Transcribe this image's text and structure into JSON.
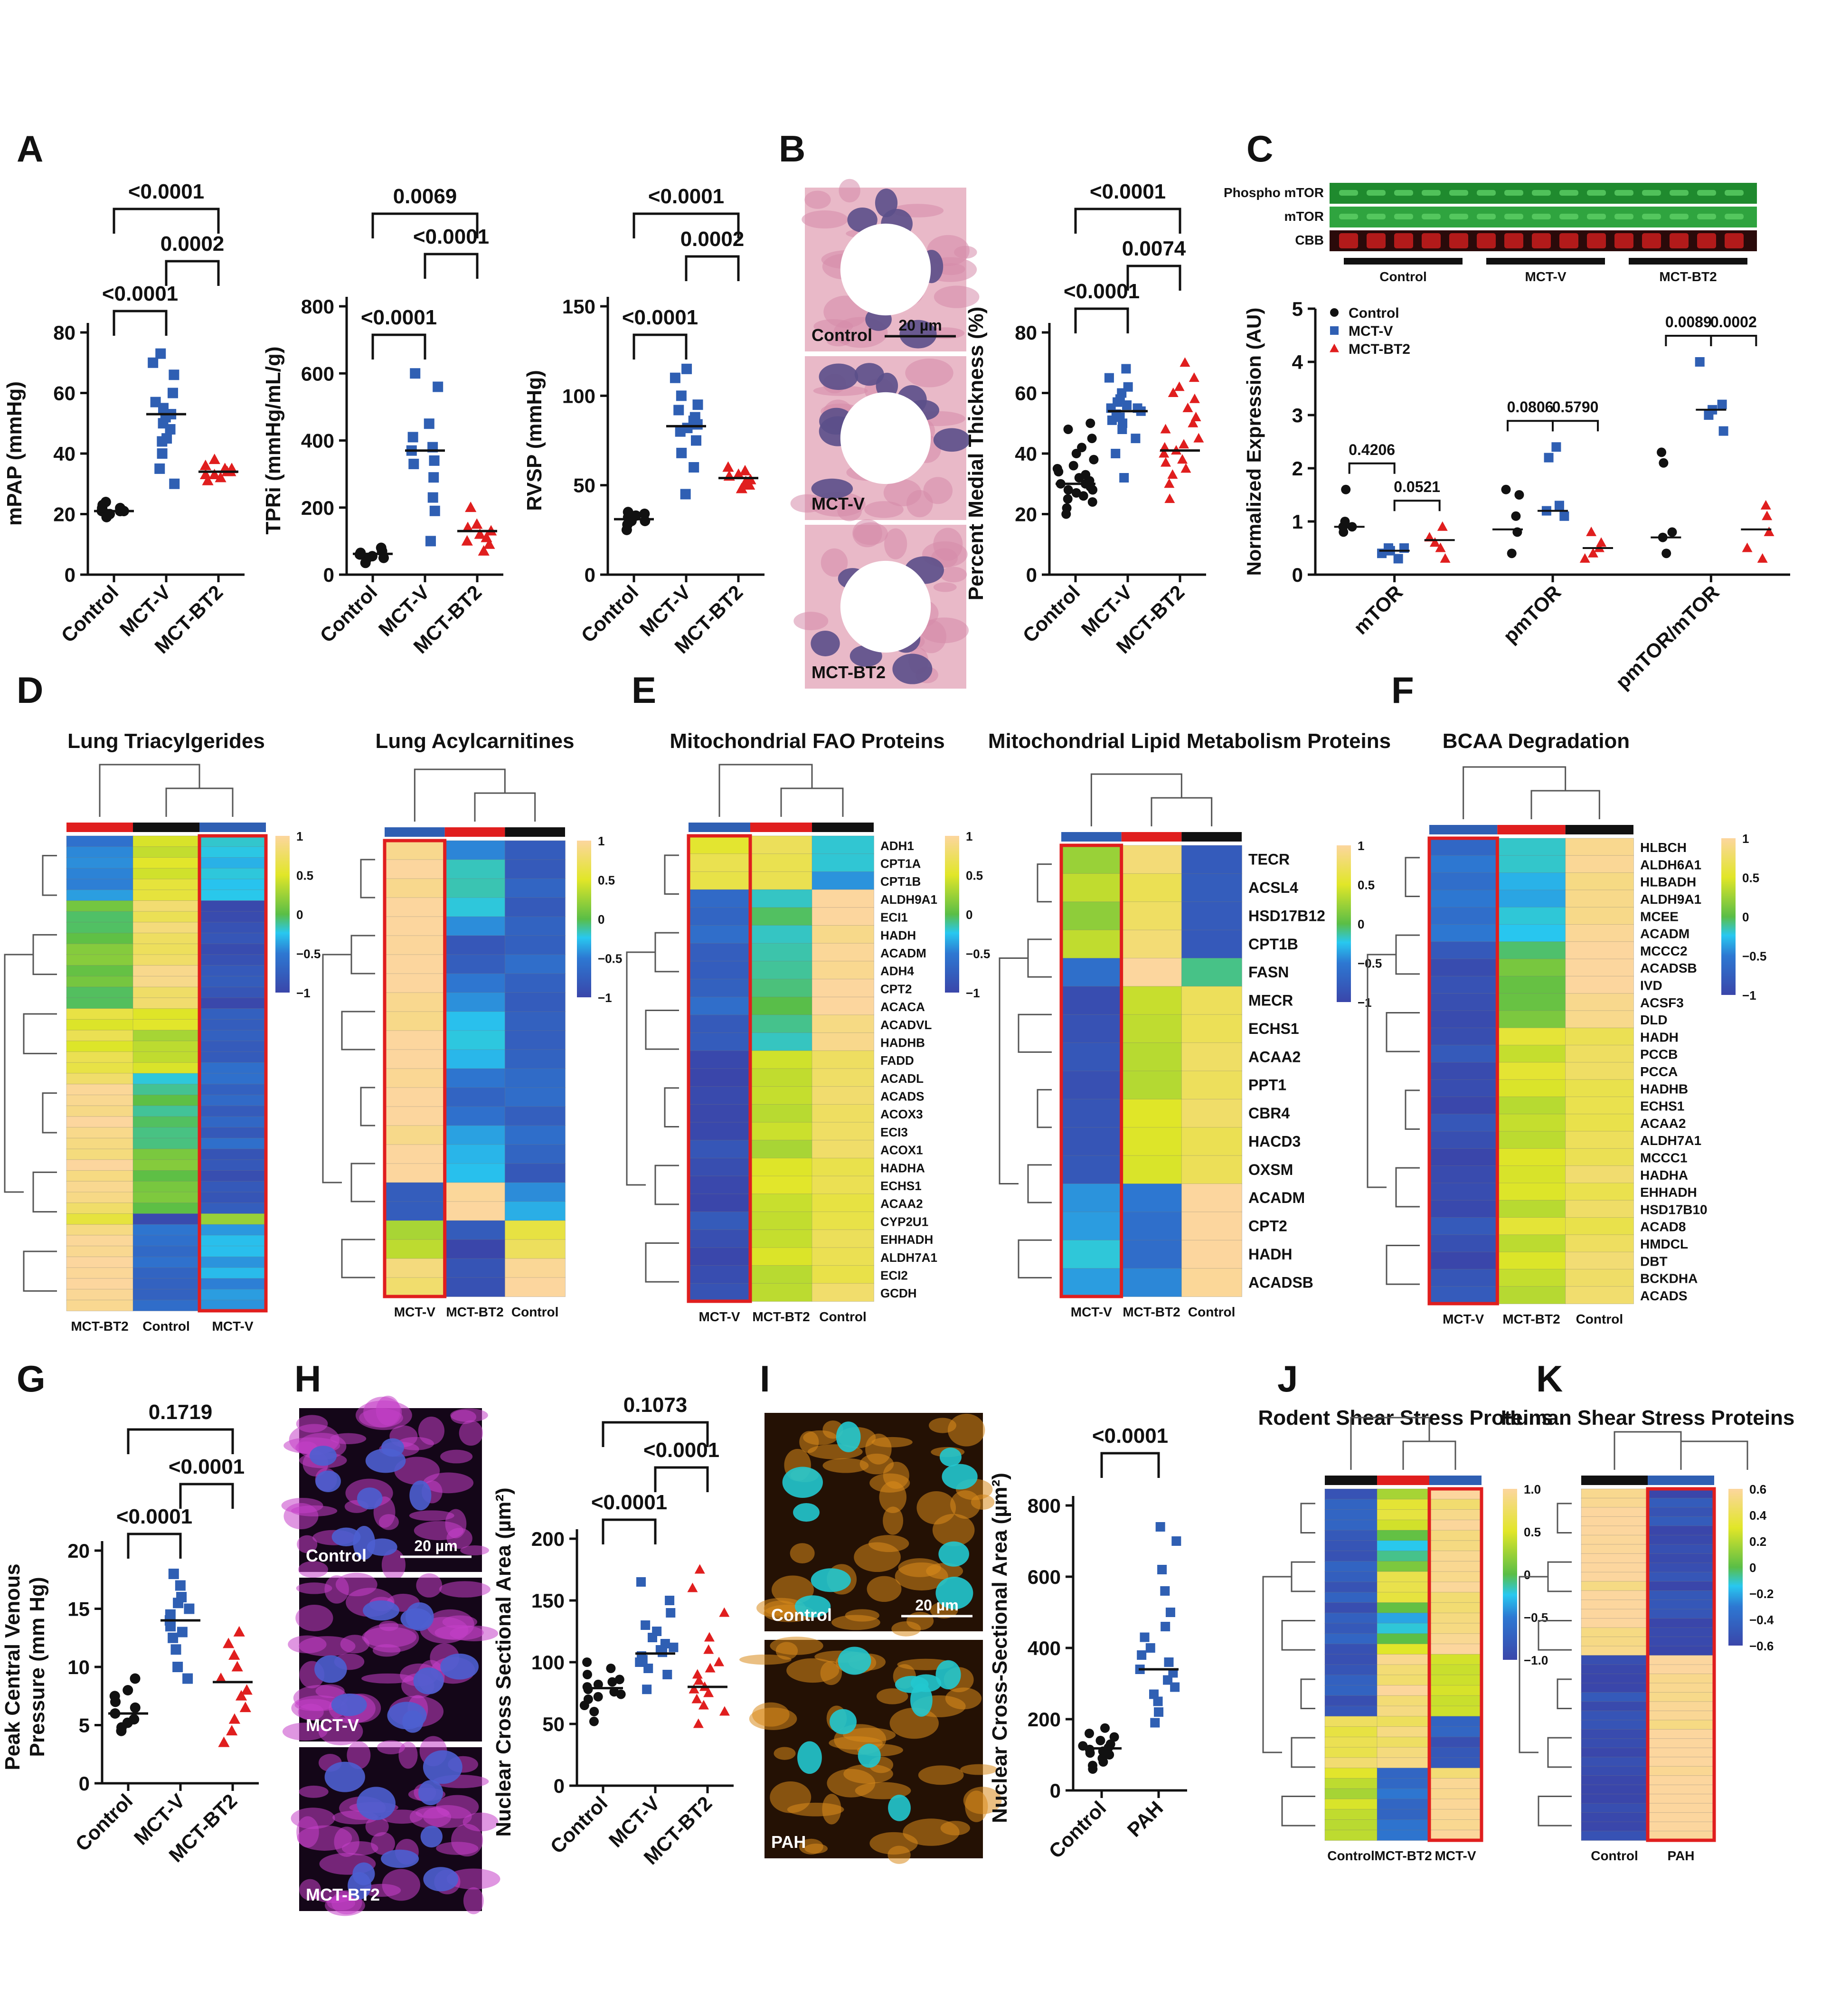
{
  "panels": {
    "A": {
      "label": "A",
      "charts": [
        {
          "type": "scatter",
          "ylabel": "mPAP (mmHg)",
          "ylim": [
            0,
            80
          ],
          "yticks": [
            0,
            20,
            40,
            60,
            80
          ],
          "categories": [
            "Control",
            "MCT-V",
            "MCT-BT2"
          ],
          "values": [
            [
              19,
              20,
              20,
              21,
              21,
              21,
              22,
              22,
              23,
              24
            ],
            [
              30,
              35,
              40,
              44,
              45,
              48,
              50,
              52,
              53,
              55,
              57,
              60,
              66,
              70,
              73
            ],
            [
              31,
              32,
              33,
              33,
              34,
              34,
              35,
              35,
              36,
              38
            ]
          ],
          "means": [
            21,
            53,
            34
          ],
          "brackets": [
            {
              "a": 0,
              "b": 1,
              "label": "<0.0001",
              "level": 0
            },
            {
              "a": 1,
              "b": 2,
              "label": "0.0002",
              "level": 1
            },
            {
              "a": 0,
              "b": 2,
              "label": "<0.0001",
              "level": 2
            }
          ]
        },
        {
          "type": "scatter",
          "ylabel": "TPRi (mmHg/mL/g)",
          "ylim": [
            0,
            800
          ],
          "yticks": [
            0,
            200,
            400,
            600,
            800
          ],
          "categories": [
            "Control",
            "MCT-V",
            "MCT-BT2"
          ],
          "values": [
            [
              35,
              45,
              50,
              55,
              60,
              65,
              70,
              80
            ],
            [
              100,
              190,
              230,
              290,
              330,
              340,
              370,
              380,
              410,
              450,
              560,
              600
            ],
            [
              70,
              90,
              100,
              110,
              120,
              130,
              140,
              150,
              200
            ]
          ],
          "means": [
            62,
            370,
            130
          ],
          "brackets": [
            {
              "a": 0,
              "b": 1,
              "label": "<0.0001",
              "level": 0
            },
            {
              "a": 1,
              "b": 2,
              "label": "<0.0001",
              "level": 1
            },
            {
              "a": 0,
              "b": 2,
              "label": "0.0069",
              "level": 2
            }
          ]
        },
        {
          "type": "scatter",
          "ylabel": "RVSP (mmHg)",
          "ylim": [
            0,
            150
          ],
          "yticks": [
            0,
            50,
            100,
            150
          ],
          "categories": [
            "Control",
            "MCT-V",
            "MCT-BT2"
          ],
          "values": [
            [
              25,
              28,
              30,
              30,
              31,
              32,
              33,
              34,
              35
            ],
            [
              45,
              60,
              68,
              75,
              80,
              82,
              84,
              86,
              88,
              92,
              95,
              100,
              110,
              115
            ],
            [
              48,
              50,
              51,
              52,
              53,
              55,
              56,
              58,
              60
            ]
          ],
          "means": [
            31,
            83,
            54
          ],
          "brackets": [
            {
              "a": 0,
              "b": 1,
              "label": "<0.0001",
              "level": 0
            },
            {
              "a": 1,
              "b": 2,
              "label": "0.0002",
              "level": 1
            },
            {
              "a": 0,
              "b": 2,
              "label": "<0.0001",
              "level": 2
            }
          ]
        }
      ]
    },
    "B": {
      "label": "B",
      "images": [
        {
          "label": "Control",
          "scale": "20 µm",
          "scheme": "he"
        },
        {
          "label": "MCT-V",
          "scale": "",
          "scheme": "he"
        },
        {
          "label": "MCT-BT2",
          "scale": "",
          "scheme": "he"
        }
      ],
      "chart": {
        "type": "scatter",
        "ylabel": "Percent Medial Thickness (%)",
        "ylim": [
          0,
          80
        ],
        "yticks": [
          0,
          20,
          40,
          60,
          80
        ],
        "categories": [
          "Control",
          "MCT-V",
          "MCT-BT2"
        ],
        "values": [
          [
            20,
            22,
            24,
            25,
            26,
            27,
            28,
            28,
            29,
            30,
            30,
            31,
            32,
            33,
            34,
            35,
            36,
            38,
            40,
            42,
            45,
            48,
            50
          ],
          [
            32,
            40,
            45,
            48,
            50,
            51,
            52,
            53,
            54,
            55,
            55,
            56,
            57,
            58,
            60,
            62,
            65,
            68
          ],
          [
            25,
            30,
            33,
            35,
            37,
            38,
            40,
            41,
            42,
            43,
            45,
            48,
            50,
            52,
            55,
            58,
            60,
            62,
            65,
            70
          ]
        ],
        "means": [
          30,
          54,
          41
        ],
        "brackets": [
          {
            "a": 0,
            "b": 1,
            "label": "<0.0001",
            "level": 0
          },
          {
            "a": 1,
            "b": 2,
            "label": "0.0074",
            "level": 1
          },
          {
            "a": 0,
            "b": 2,
            "label": "<0.0001",
            "level": 2
          }
        ]
      }
    },
    "C": {
      "label": "C",
      "blot_rows": [
        "Phospho mTOR",
        "mTOR",
        "CBB"
      ],
      "blot_groups": [
        "Control",
        "MCT-V",
        "MCT-BT2"
      ],
      "chart": {
        "type": "scatter",
        "ylabel": "Normalized Expression (AU)",
        "ylim": [
          0,
          5
        ],
        "yticks": [
          0,
          1,
          2,
          3,
          4,
          5
        ],
        "categories": [
          "mTOR",
          "pmTOR",
          "pmTOR/mTOR"
        ],
        "legend": [
          "Control",
          "MCT-V",
          "MCT-BT2"
        ],
        "groups": [
          {
            "values": [
              [
                0.8,
                0.9,
                0.9,
                1.0,
                1.6
              ],
              [
                0.3,
                0.4,
                0.45,
                0.5,
                0.5
              ],
              [
                0.3,
                0.5,
                0.6,
                0.7,
                0.9
              ]
            ],
            "means": [
              0.9,
              0.45,
              0.65
            ]
          },
          {
            "values": [
              [
                0.4,
                0.8,
                1.1,
                1.5,
                1.6
              ],
              [
                1.1,
                1.2,
                1.3,
                2.2,
                2.4
              ],
              [
                0.3,
                0.4,
                0.5,
                0.6,
                0.8
              ]
            ],
            "means": [
              0.85,
              1.2,
              0.5
            ]
          },
          {
            "values": [
              [
                0.4,
                0.7,
                0.8,
                2.1,
                2.3
              ],
              [
                2.7,
                3.0,
                3.1,
                3.2,
                4.0
              ],
              [
                0.3,
                0.5,
                0.8,
                1.1,
                1.3
              ]
            ],
            "means": [
              0.7,
              3.1,
              0.85
            ]
          }
        ],
        "pvalues": [
          [
            "0.4206",
            "0.0521"
          ],
          [
            "0.0806",
            "0.5790"
          ],
          [
            "0.0089",
            "0.0002"
          ]
        ]
      }
    },
    "D": {
      "label": "D",
      "heatmaps": [
        {
          "title": "Lung Triacylgerides",
          "columns": [
            "MCT-BT2",
            "Control",
            "MCT-V"
          ],
          "rows": [],
          "highlight": 2,
          "nrows": 44,
          "scale": [
            "1",
            "0.5",
            "0",
            "−0.5",
            "−1"
          ]
        },
        {
          "title": "Lung Acylcarnitines",
          "columns": [
            "MCT-V",
            "MCT-BT2",
            "Control"
          ],
          "rows": [],
          "highlight": 0,
          "nrows": 24,
          "scale": [
            "1",
            "0.5",
            "0",
            "−0.5",
            "−1"
          ]
        }
      ]
    },
    "E": {
      "label": "E",
      "heatmaps": [
        {
          "title": "Mitochondrial FAO Proteins",
          "columns": [
            "MCT-V",
            "MCT-BT2",
            "Control"
          ],
          "rows": [
            "ADH1",
            "CPT1A",
            "CPT1B",
            "ALDH9A1",
            "ECI1",
            "HADH",
            "ACADM",
            "ADH4",
            "CPT2",
            "ACACA",
            "ACADVL",
            "HADHB",
            "FADD",
            "ACADL",
            "ACADS",
            "ACOX3",
            "ECI3",
            "ACOX1",
            "HADHA",
            "ECHS1",
            "ACAA2",
            "CYP2U1",
            "EHHADH",
            "ALDH7A1",
            "ECI2",
            "GCDH"
          ],
          "highlight": 0,
          "nrows": 26,
          "scale": [
            "1",
            "0.5",
            "0",
            "−0.5",
            "−1"
          ]
        },
        {
          "title": "Mitochondrial Lipid Metabolism Proteins",
          "columns": [
            "MCT-V",
            "MCT-BT2",
            "Control"
          ],
          "rows": [
            "TECR",
            "ACSL4",
            "HSD17B12",
            "CPT1B",
            "FASN",
            "MECR",
            "ECHS1",
            "ACAA2",
            "PPT1",
            "CBR4",
            "HACD3",
            "OXSM",
            "ACADM",
            "CPT2",
            "HADH",
            "ACADSB"
          ],
          "highlight": 0,
          "nrows": 16,
          "scale": [
            "1",
            "0.5",
            "0",
            "−0.5",
            "−1"
          ]
        }
      ]
    },
    "F": {
      "label": "F",
      "heatmaps": [
        {
          "title": "BCAA Degradation",
          "columns": [
            "MCT-V",
            "MCT-BT2",
            "Control"
          ],
          "rows": [
            "HLBCH",
            "ALDH6A1",
            "HLBADH",
            "ALDH9A1",
            "MCEE",
            "ACADM",
            "MCCC2",
            "ACADSB",
            "IVD",
            "ACSF3",
            "DLD",
            "HADH",
            "PCCB",
            "PCCA",
            "HADHB",
            "ECHS1",
            "ACAA2",
            "ALDH7A1",
            "MCCC1",
            "HADHA",
            "EHHADH",
            "HSD17B10",
            "ACAD8",
            "HMDCL",
            "DBT",
            "BCKDHA",
            "ACADS"
          ],
          "highlight": 0,
          "nrows": 27,
          "scale": [
            "1",
            "0.5",
            "0",
            "−0.5",
            "−1"
          ]
        }
      ]
    },
    "G": {
      "label": "G",
      "chart": {
        "type": "scatter",
        "ylabel": "Peak Central  Venous Pressure (mm Hg)",
        "ylim": [
          0,
          20
        ],
        "yticks": [
          0,
          5,
          10,
          15,
          20
        ],
        "categories": [
          "Control",
          "MCT-V",
          "MCT-BT2"
        ],
        "values": [
          [
            4.5,
            4.8,
            5.2,
            5.5,
            6,
            6.5,
            7,
            7.5,
            8,
            9
          ],
          [
            9,
            10,
            11.5,
            12.5,
            13,
            13.5,
            14,
            14.5,
            15,
            15.5,
            16,
            17,
            18
          ],
          [
            3.5,
            4.5,
            5.5,
            6.5,
            7.5,
            8,
            9,
            10,
            11,
            12,
            13
          ]
        ],
        "means": [
          6,
          14,
          8.7
        ],
        "brackets": [
          {
            "a": 0,
            "b": 1,
            "label": "<0.0001",
            "level": 0
          },
          {
            "a": 1,
            "b": 2,
            "label": "<0.0001",
            "level": 1
          },
          {
            "a": 0,
            "b": 2,
            "label": "0.1719",
            "level": 2
          }
        ]
      }
    },
    "H": {
      "label": "H",
      "images": [
        {
          "label": "Control",
          "scale": "20 µm",
          "scheme": "if1"
        },
        {
          "label": "MCT-V",
          "scale": "",
          "scheme": "if1"
        },
        {
          "label": "MCT-BT2",
          "scale": "",
          "scheme": "if1"
        }
      ],
      "chart": {
        "type": "scatter",
        "ylabel": "Nuclear Cross Sectional Area (µm²)",
        "ylim": [
          0,
          200
        ],
        "yticks": [
          0,
          50,
          100,
          150,
          200
        ],
        "categories": [
          "Control",
          "MCT-V",
          "MCT-BT2"
        ],
        "values": [
          [
            52,
            60,
            65,
            70,
            72,
            74,
            76,
            78,
            80,
            82,
            84,
            86,
            90,
            95,
            100
          ],
          [
            78,
            90,
            95,
            100,
            102,
            105,
            108,
            110,
            112,
            115,
            120,
            125,
            130,
            140,
            150,
            165
          ],
          [
            50,
            60,
            65,
            70,
            75,
            78,
            80,
            85,
            90,
            95,
            100,
            110,
            120,
            140,
            160,
            175
          ]
        ],
        "means": [
          79,
          107,
          80
        ],
        "brackets": [
          {
            "a": 0,
            "b": 1,
            "label": "<0.0001",
            "level": 0
          },
          {
            "a": 1,
            "b": 2,
            "label": "<0.0001",
            "level": 1
          },
          {
            "a": 0,
            "b": 2,
            "label": "0.1073",
            "level": 2
          }
        ]
      }
    },
    "I": {
      "label": "I",
      "images": [
        {
          "label": "Control",
          "scale": "20 µm",
          "scheme": "if2"
        },
        {
          "label": "PAH",
          "scale": "",
          "scheme": "if2"
        }
      ],
      "chart": {
        "type": "scatter",
        "ylabel": "Nuclear Cross-Sectional Area (µm²)",
        "ylim": [
          0,
          800
        ],
        "yticks": [
          0,
          200,
          400,
          600,
          800
        ],
        "categories": [
          "Control",
          "PAH"
        ],
        "values": [
          [
            60,
            70,
            80,
            90,
            100,
            105,
            110,
            115,
            120,
            125,
            130,
            140,
            150,
            160,
            175
          ],
          [
            190,
            220,
            250,
            270,
            290,
            310,
            330,
            340,
            360,
            380,
            400,
            430,
            460,
            500,
            560,
            620,
            700,
            740
          ]
        ],
        "means": [
          118,
          340
        ],
        "brackets": [
          {
            "a": 0,
            "b": 1,
            "label": "<0.0001",
            "level": 0
          }
        ]
      }
    },
    "J": {
      "label": "J",
      "heatmaps": [
        {
          "title": "Rodent Shear Stress Proteins",
          "columns": [
            "Control",
            "MCT-BT2",
            "MCT-V"
          ],
          "rows": [],
          "highlight": 2,
          "nrows": 34,
          "scale": [
            "1.0",
            "0.5",
            "0",
            "−0.5",
            "−1.0"
          ]
        }
      ]
    },
    "K": {
      "label": "K",
      "heatmaps": [
        {
          "title": "Human Shear Stress Proteins",
          "columns": [
            "Control",
            "PAH"
          ],
          "rows": [],
          "highlight": 1,
          "nrows": 38,
          "scale": [
            "0.6",
            "0.4",
            "0.2",
            "0",
            "−0.2",
            "−0.4",
            "−0.6"
          ]
        }
      ]
    }
  },
  "colors": {
    "Control": "#111111",
    "MCT-V": "#2f5fb3",
    "MCT-BT2": "#e01e1e",
    "PAH": "#2f5fb3",
    "highlight": "#e01e1e"
  }
}
